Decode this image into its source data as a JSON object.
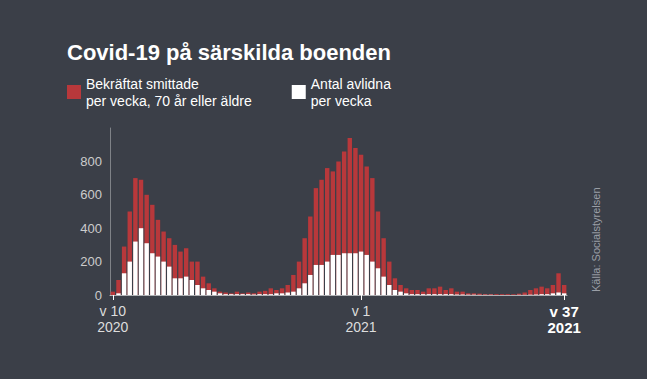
{
  "chart_data": {
    "type": "bar",
    "title": "Covid-19 på särskilda boenden",
    "source": "Källa: Socialstyrelsen",
    "categories": [
      "v 10\n2020",
      null,
      null,
      null,
      null,
      null,
      null,
      null,
      null,
      null,
      null,
      null,
      null,
      null,
      null,
      null,
      null,
      null,
      null,
      null,
      null,
      null,
      null,
      null,
      null,
      null,
      null,
      null,
      null,
      null,
      null,
      null,
      null,
      null,
      null,
      null,
      null,
      null,
      null,
      null,
      null,
      null,
      null,
      null,
      "v 1\n2021",
      null,
      null,
      null,
      null,
      null,
      null,
      null,
      null,
      null,
      null,
      null,
      null,
      null,
      null,
      null,
      null,
      null,
      null,
      null,
      null,
      null,
      null,
      null,
      null,
      null,
      null,
      null,
      null,
      null,
      null,
      null,
      null,
      null,
      null,
      null,
      "v 37\n2021"
    ],
    "series": [
      {
        "name": "Bekräftat smittade\nper vecka, 70 år eller äldre",
        "color": "#b8383b",
        "values": [
          20,
          90,
          290,
          500,
          700,
          690,
          600,
          540,
          450,
          380,
          340,
          300,
          260,
          280,
          200,
          200,
          110,
          70,
          40,
          20,
          15,
          10,
          20,
          10,
          15,
          10,
          20,
          25,
          40,
          30,
          40,
          60,
          120,
          200,
          340,
          470,
          640,
          690,
          760,
          740,
          800,
          860,
          940,
          880,
          840,
          770,
          700,
          500,
          340,
          200,
          100,
          60,
          40,
          30,
          30,
          20,
          40,
          40,
          50,
          30,
          40,
          20,
          20,
          10,
          10,
          8,
          5,
          5,
          5,
          5,
          5,
          5,
          8,
          15,
          30,
          40,
          50,
          40,
          60,
          130,
          60
        ]
      },
      {
        "name": "Antal avlidna\nper vecka",
        "color": "#ffffff",
        "values": [
          0,
          10,
          130,
          200,
          320,
          400,
          310,
          250,
          230,
          200,
          170,
          100,
          100,
          110,
          90,
          60,
          40,
          30,
          20,
          10,
          5,
          5,
          5,
          5,
          5,
          3,
          5,
          5,
          5,
          10,
          10,
          15,
          20,
          40,
          70,
          120,
          180,
          180,
          200,
          240,
          240,
          250,
          250,
          250,
          260,
          240,
          200,
          160,
          110,
          60,
          30,
          20,
          10,
          5,
          5,
          5,
          5,
          5,
          5,
          5,
          5,
          3,
          3,
          2,
          2,
          1,
          1,
          1,
          0,
          0,
          0,
          0,
          1,
          1,
          2,
          3,
          5,
          5,
          10,
          15,
          10
        ]
      }
    ],
    "ylim": [
      0,
      1000
    ],
    "yticks": [
      0,
      200,
      400,
      600,
      800
    ],
    "grid": false,
    "legend": "top-left"
  }
}
